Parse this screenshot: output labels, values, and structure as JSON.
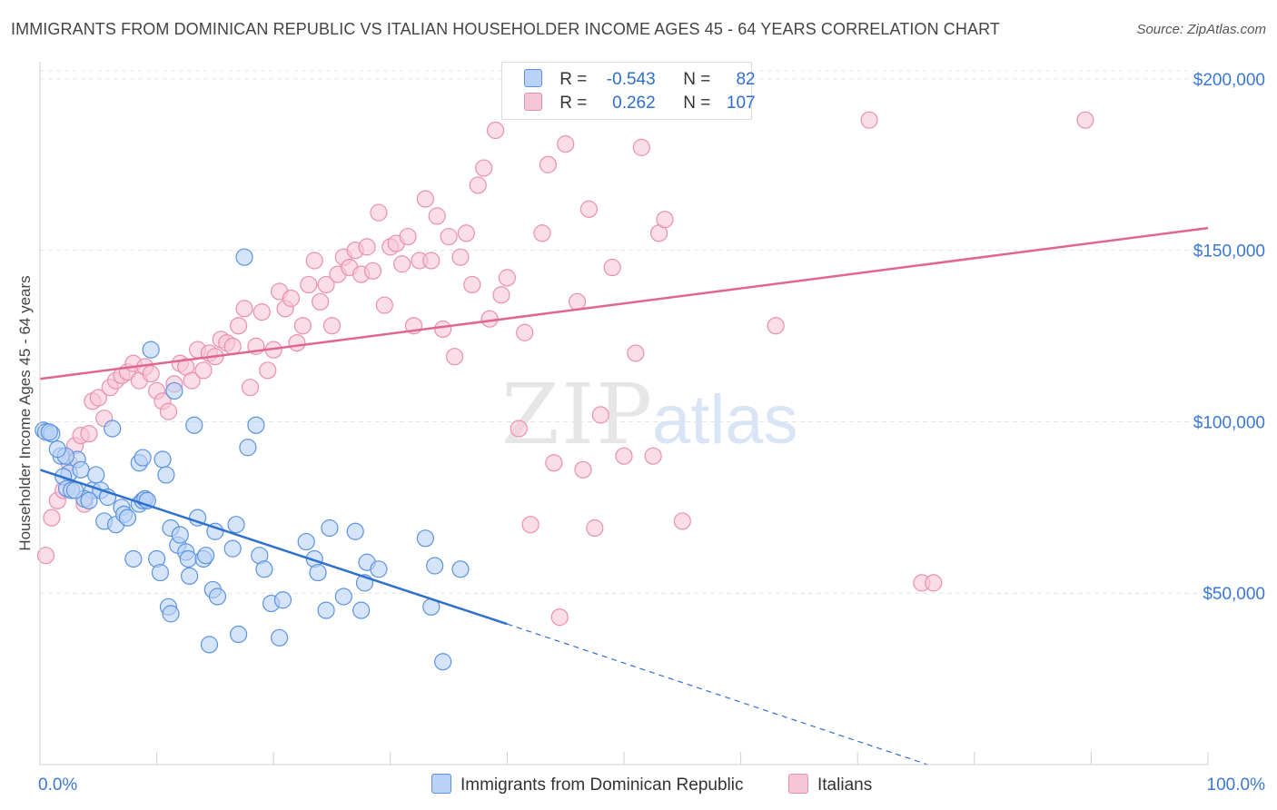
{
  "title": "IMMIGRANTS FROM DOMINICAN REPUBLIC VS ITALIAN HOUSEHOLDER INCOME AGES 45 - 64 YEARS CORRELATION CHART",
  "source": "Source: ZipAtlas.com",
  "legend_stats": {
    "r_label": "R =",
    "n_label": "N =",
    "blue_r": "-0.543",
    "blue_n": "82",
    "pink_r": "0.262",
    "pink_n": "107"
  },
  "colors": {
    "blue": "#5b93e0",
    "blue_fill": "#b9d2f5",
    "blue_line": "#2f6fce",
    "pink": "#e98fb0",
    "pink_fill": "#f7c6d6",
    "pink_line": "#e0668f",
    "axis_text": "#3b78d4",
    "grid": "#e4e4e4"
  },
  "chart_data": {
    "type": "scatter",
    "title": "IMMIGRANTS FROM DOMINICAN REPUBLIC VS ITALIAN HOUSEHOLDER INCOME AGES 45 - 64 YEARS CORRELATION CHART",
    "xlabel": "",
    "ylabel": "Householder Income Ages 45 - 64 years",
    "xlim": [
      0,
      100
    ],
    "ylim": [
      0,
      205000
    ],
    "x_tick_labels": [
      "0.0%",
      "100.0%"
    ],
    "y_ticks": [
      50000,
      100000,
      150000,
      200000
    ],
    "y_tick_labels": [
      "$50,000",
      "$100,000",
      "$150,000",
      "$200,000"
    ],
    "grid": true,
    "legend_position": "top-center",
    "series": [
      {
        "name": "Immigrants from Dominican Republic",
        "trend": {
          "x0": 0,
          "y0": 86000,
          "x1": 40,
          "y1": 41000,
          "dashed_to_x": 76,
          "dashed_to_y": 0
        },
        "points": [
          [
            0.3,
            97500
          ],
          [
            0.5,
            97000
          ],
          [
            1.0,
            96500
          ],
          [
            1.8,
            90000
          ],
          [
            2.5,
            85000
          ],
          [
            2.0,
            84000
          ],
          [
            3.2,
            89000
          ],
          [
            3.5,
            86000
          ],
          [
            2.3,
            80500
          ],
          [
            2.7,
            80000
          ],
          [
            4.5,
            80000
          ],
          [
            4.8,
            84500
          ],
          [
            5.2,
            80000
          ],
          [
            3.8,
            77500
          ],
          [
            6.2,
            98000
          ],
          [
            5.5,
            71000
          ],
          [
            6.5,
            70000
          ],
          [
            7.0,
            75000
          ],
          [
            7.2,
            73000
          ],
          [
            8.0,
            60000
          ],
          [
            8.5,
            88000
          ],
          [
            8.8,
            89500
          ],
          [
            8.5,
            76000
          ],
          [
            8.8,
            77000
          ],
          [
            9.0,
            77500
          ],
          [
            9.5,
            121000
          ],
          [
            10.5,
            89000
          ],
          [
            10.8,
            84500
          ],
          [
            10.0,
            60000
          ],
          [
            10.3,
            56000
          ],
          [
            11.0,
            46000
          ],
          [
            11.2,
            44000
          ],
          [
            11.2,
            69000
          ],
          [
            11.8,
            64000
          ],
          [
            12.0,
            67000
          ],
          [
            12.5,
            62000
          ],
          [
            12.7,
            60000
          ],
          [
            12.8,
            55000
          ],
          [
            13.2,
            99000
          ],
          [
            13.5,
            72000
          ],
          [
            14.0,
            60000
          ],
          [
            14.2,
            61000
          ],
          [
            14.5,
            35000
          ],
          [
            14.8,
            51000
          ],
          [
            15.0,
            68000
          ],
          [
            15.2,
            49000
          ],
          [
            16.5,
            63000
          ],
          [
            16.8,
            70000
          ],
          [
            17.0,
            38000
          ],
          [
            17.5,
            148000
          ],
          [
            17.8,
            92500
          ],
          [
            18.5,
            99000
          ],
          [
            18.8,
            61000
          ],
          [
            19.2,
            57000
          ],
          [
            19.8,
            47000
          ],
          [
            20.5,
            37000
          ],
          [
            20.8,
            48000
          ],
          [
            22.8,
            65000
          ],
          [
            23.5,
            60000
          ],
          [
            23.8,
            56000
          ],
          [
            24.5,
            45000
          ],
          [
            24.8,
            69000
          ],
          [
            26.0,
            49000
          ],
          [
            27.0,
            68000
          ],
          [
            27.5,
            45000
          ],
          [
            27.8,
            53000
          ],
          [
            28.0,
            59000
          ],
          [
            29.0,
            57000
          ],
          [
            33.0,
            66000
          ],
          [
            33.5,
            46000
          ],
          [
            33.8,
            58000
          ],
          [
            34.5,
            30000
          ],
          [
            36.0,
            57000
          ],
          [
            9.2,
            77000
          ],
          [
            5.8,
            78000
          ],
          [
            4.2,
            77000
          ],
          [
            3.0,
            80000
          ],
          [
            2.2,
            90000
          ],
          [
            1.5,
            92000
          ],
          [
            0.8,
            97000
          ],
          [
            11.5,
            109000
          ],
          [
            7.5,
            72000
          ]
        ]
      },
      {
        "name": "Italians",
        "trend": {
          "x0": 0,
          "y0": 112500,
          "x1": 100,
          "y1": 156500
        },
        "points": [
          [
            0.5,
            61000
          ],
          [
            1.0,
            72000
          ],
          [
            1.5,
            77000
          ],
          [
            2.0,
            80000
          ],
          [
            2.5,
            88000
          ],
          [
            3.0,
            93000
          ],
          [
            3.5,
            96000
          ],
          [
            4.2,
            96500
          ],
          [
            4.5,
            106000
          ],
          [
            5.0,
            107000
          ],
          [
            5.5,
            101000
          ],
          [
            6.0,
            110000
          ],
          [
            6.5,
            112000
          ],
          [
            7.0,
            113500
          ],
          [
            7.5,
            114500
          ],
          [
            8.0,
            117000
          ],
          [
            8.5,
            112000
          ],
          [
            9.0,
            116000
          ],
          [
            9.5,
            114000
          ],
          [
            10.0,
            109000
          ],
          [
            10.5,
            106000
          ],
          [
            11.0,
            103000
          ],
          [
            11.5,
            111000
          ],
          [
            12.0,
            117000
          ],
          [
            12.5,
            116000
          ],
          [
            13.0,
            112000
          ],
          [
            13.5,
            121000
          ],
          [
            14.0,
            115000
          ],
          [
            14.5,
            120000
          ],
          [
            15.0,
            119000
          ],
          [
            15.5,
            124000
          ],
          [
            16.0,
            123000
          ],
          [
            16.5,
            122000
          ],
          [
            17.0,
            128000
          ],
          [
            17.5,
            133000
          ],
          [
            18.0,
            110000
          ],
          [
            18.5,
            122000
          ],
          [
            19.0,
            132000
          ],
          [
            19.5,
            115000
          ],
          [
            20.0,
            121000
          ],
          [
            20.5,
            138000
          ],
          [
            21.0,
            133000
          ],
          [
            21.5,
            136000
          ],
          [
            22.0,
            123000
          ],
          [
            22.5,
            128000
          ],
          [
            23.0,
            140000
          ],
          [
            23.5,
            147000
          ],
          [
            24.0,
            135000
          ],
          [
            24.5,
            140000
          ],
          [
            25.0,
            128000
          ],
          [
            25.5,
            143000
          ],
          [
            26.0,
            148000
          ],
          [
            26.5,
            145000
          ],
          [
            27.0,
            150000
          ],
          [
            27.5,
            143000
          ],
          [
            28.0,
            151000
          ],
          [
            28.5,
            144000
          ],
          [
            29.0,
            161000
          ],
          [
            29.5,
            134000
          ],
          [
            30.0,
            151000
          ],
          [
            30.5,
            152000
          ],
          [
            31.0,
            146000
          ],
          [
            31.5,
            154000
          ],
          [
            32.0,
            128000
          ],
          [
            32.5,
            147000
          ],
          [
            33.0,
            165000
          ],
          [
            33.5,
            147000
          ],
          [
            34.0,
            160000
          ],
          [
            34.5,
            127000
          ],
          [
            35.0,
            154000
          ],
          [
            35.5,
            119000
          ],
          [
            36.0,
            148000
          ],
          [
            36.5,
            155000
          ],
          [
            37.0,
            140000
          ],
          [
            37.5,
            169000
          ],
          [
            38.0,
            174000
          ],
          [
            38.5,
            130000
          ],
          [
            39.0,
            185000
          ],
          [
            39.5,
            137000
          ],
          [
            40.0,
            142000
          ],
          [
            41.0,
            98000
          ],
          [
            41.5,
            126000
          ],
          [
            42.0,
            70000
          ],
          [
            43.0,
            155000
          ],
          [
            43.5,
            175000
          ],
          [
            44.0,
            88000
          ],
          [
            44.5,
            43000
          ],
          [
            45.0,
            181000
          ],
          [
            46.0,
            135000
          ],
          [
            46.5,
            86000
          ],
          [
            47.0,
            162000
          ],
          [
            47.5,
            69000
          ],
          [
            48.0,
            102000
          ],
          [
            49.0,
            145000
          ],
          [
            50.0,
            90000
          ],
          [
            51.0,
            120000
          ],
          [
            51.5,
            180000
          ],
          [
            52.5,
            90000
          ],
          [
            53.0,
            155000
          ],
          [
            53.5,
            159000
          ],
          [
            55.0,
            71000
          ],
          [
            63.0,
            128000
          ],
          [
            71.0,
            188000
          ],
          [
            75.5,
            53000
          ],
          [
            76.5,
            53000
          ],
          [
            89.5,
            188000
          ],
          [
            3.8,
            76000
          ]
        ]
      }
    ]
  },
  "bottom_legend": {
    "blue_label": "Immigrants from Dominican Republic",
    "pink_label": "Italians"
  },
  "watermark": "ZIPatlas"
}
